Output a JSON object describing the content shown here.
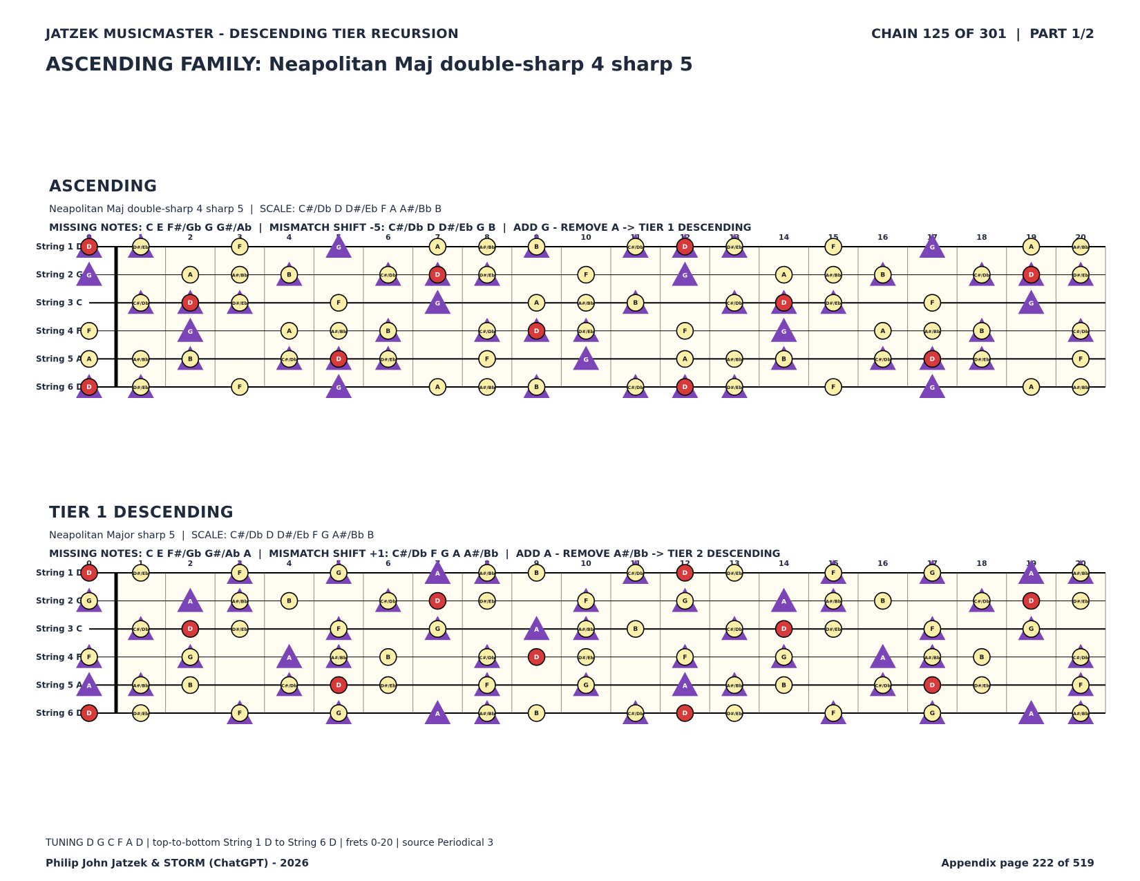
{
  "header": {
    "left": "JATZEK MUSICMASTER - DESCENDING TIER RECURSION",
    "right": "CHAIN 125 OF 301  |  PART 1/2"
  },
  "page_title": "ASCENDING FAMILY: Neapolitan Maj double-sharp 4 sharp 5",
  "colors": {
    "circle_fill": "#fbefaa",
    "root_fill": "#d63a3a",
    "triangle_fill": "#7b45b8",
    "board_bg": "#fffdf2",
    "text": "#1f2a3c"
  },
  "fret_numbers": [
    "0",
    "1",
    "2",
    "3",
    "4",
    "5",
    "6",
    "7",
    "8",
    "9",
    "10",
    "11",
    "12",
    "13",
    "14",
    "15",
    "16",
    "17",
    "18",
    "19",
    "20"
  ],
  "sections": [
    {
      "title": "ASCENDING",
      "subtitle": "Neapolitan Maj double-sharp 4 sharp 5  |  SCALE: C#/Db D D#/Eb F A A#/Bb B",
      "missing": "MISSING NOTES: C E F#/Gb G G#/Ab  |  MISMATCH SHIFT -5: C#/Db D D#/Eb G B  |  ADD G - REMOVE A -> TIER 1 DESCENDING",
      "root": "D",
      "scale": [
        "C#/Db",
        "D",
        "D#/Eb",
        "F",
        "A",
        "A#/Bb",
        "B"
      ],
      "triangles": [
        "C#/Db",
        "D",
        "D#/Eb",
        "G",
        "B"
      ],
      "strings": [
        {
          "label": "String 1 D",
          "open": "D"
        },
        {
          "label": "String 2 G",
          "open": "G"
        },
        {
          "label": "String 3 C",
          "open": "C"
        },
        {
          "label": "String 4 F",
          "open": "F"
        },
        {
          "label": "String 5 A",
          "open": "A"
        },
        {
          "label": "String 6 D",
          "open": "D"
        }
      ]
    },
    {
      "title": "TIER 1 DESCENDING",
      "subtitle": "Neapolitan Major sharp 5  |  SCALE: C#/Db D D#/Eb F G A#/Bb B",
      "missing": "MISSING NOTES: C E F#/Gb G#/Ab A  |  MISMATCH SHIFT +1: C#/Db F G A A#/Bb  |  ADD A - REMOVE A#/Bb -> TIER 2 DESCENDING",
      "root": "D",
      "scale": [
        "C#/Db",
        "D",
        "D#/Eb",
        "F",
        "G",
        "A#/Bb",
        "B"
      ],
      "triangles": [
        "C#/Db",
        "F",
        "G",
        "A",
        "A#/Bb"
      ],
      "strings": [
        {
          "label": "String 1 D",
          "open": "D"
        },
        {
          "label": "String 2 G",
          "open": "G"
        },
        {
          "label": "String 3 C",
          "open": "C"
        },
        {
          "label": "String 4 F",
          "open": "F"
        },
        {
          "label": "String 5 A",
          "open": "A"
        },
        {
          "label": "String 6 D",
          "open": "D"
        }
      ]
    }
  ],
  "footer": {
    "tuning": "TUNING D G C F A D | top-to-bottom String 1 D to String 6 D | frets 0-20 | source Periodical 3",
    "authors": "Philip John Jatzek & STORM (ChatGPT) - 2026",
    "page": "Appendix page 222 of 519"
  }
}
